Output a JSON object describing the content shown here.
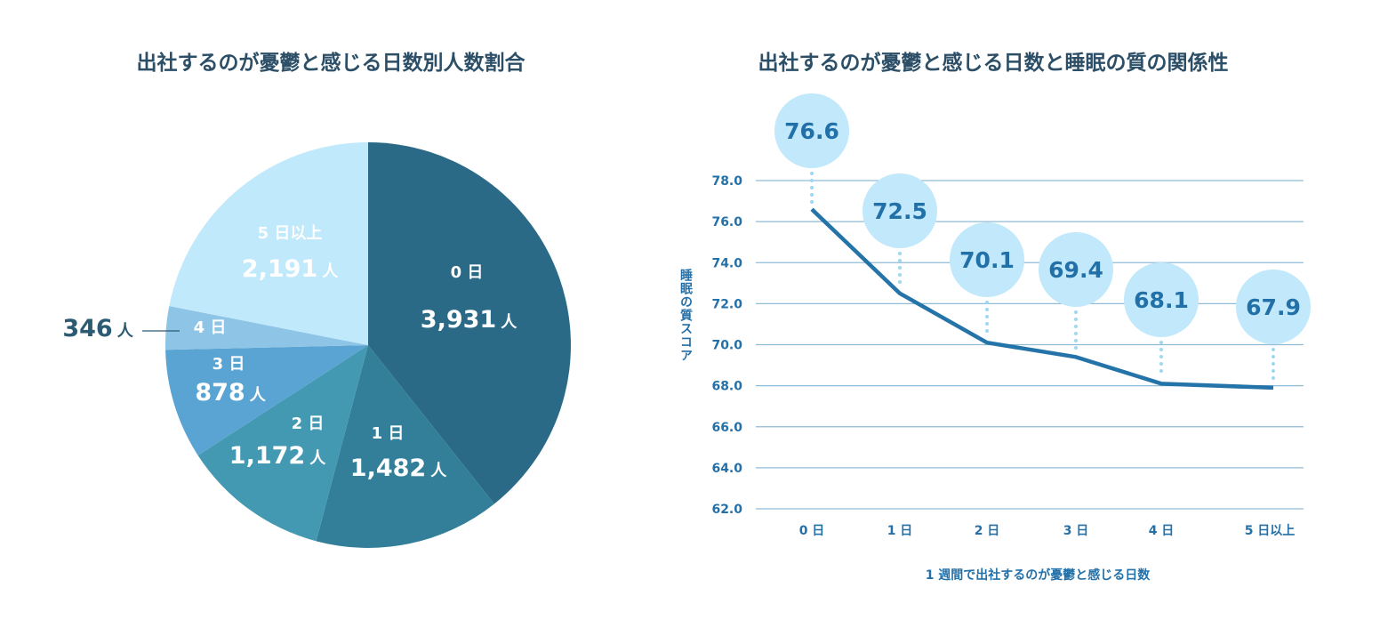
{
  "chart_data": [
    {
      "type": "pie",
      "title": "出社するのが憂鬱と感じる日数別人数割合",
      "unit": "人",
      "slices": [
        {
          "label": "0 日",
          "value": 3931,
          "display": "3,931",
          "color": "#2a6a87"
        },
        {
          "label": "1 日",
          "value": 1482,
          "display": "1,482",
          "color": "#337f99"
        },
        {
          "label": "2 日",
          "value": 1172,
          "display": "1,172",
          "color": "#4399b2"
        },
        {
          "label": "3 日",
          "value": 878,
          "display": "878",
          "color": "#5aa4d3"
        },
        {
          "label": "4 日",
          "value": 346,
          "display": "346",
          "color": "#8ec4e6"
        },
        {
          "label": "5 日以上",
          "value": 2191,
          "display": "2,191",
          "color": "#c0e9fb"
        }
      ]
    },
    {
      "type": "line",
      "title": "出社するのが憂鬱と感じる日数と睡眠の質の関係性",
      "xlabel": "1 週間で出社するのが憂鬱と感じる日数",
      "ylabel": "睡眠の質スコア",
      "categories": [
        "0 日",
        "1 日",
        "2 日",
        "3 日",
        "4 日",
        "5 日以上"
      ],
      "ylim": [
        62.0,
        78.0
      ],
      "yticks": [
        "62.0",
        "64.0",
        "66.0",
        "68.0",
        "70.0",
        "72.0",
        "74.0",
        "76.0",
        "78.0"
      ],
      "series": [
        {
          "name": "睡眠の質スコア",
          "values": [
            76.6,
            72.5,
            70.1,
            69.4,
            68.1,
            67.9
          ],
          "labels": [
            "76.6",
            "72.5",
            "70.1",
            "69.4",
            "68.1",
            "67.9"
          ]
        }
      ],
      "colors": {
        "line": "#2473a9",
        "grid": "#8fbcd6",
        "bubble": "#c1e8fb",
        "dots": "#9fd6f2"
      }
    }
  ]
}
